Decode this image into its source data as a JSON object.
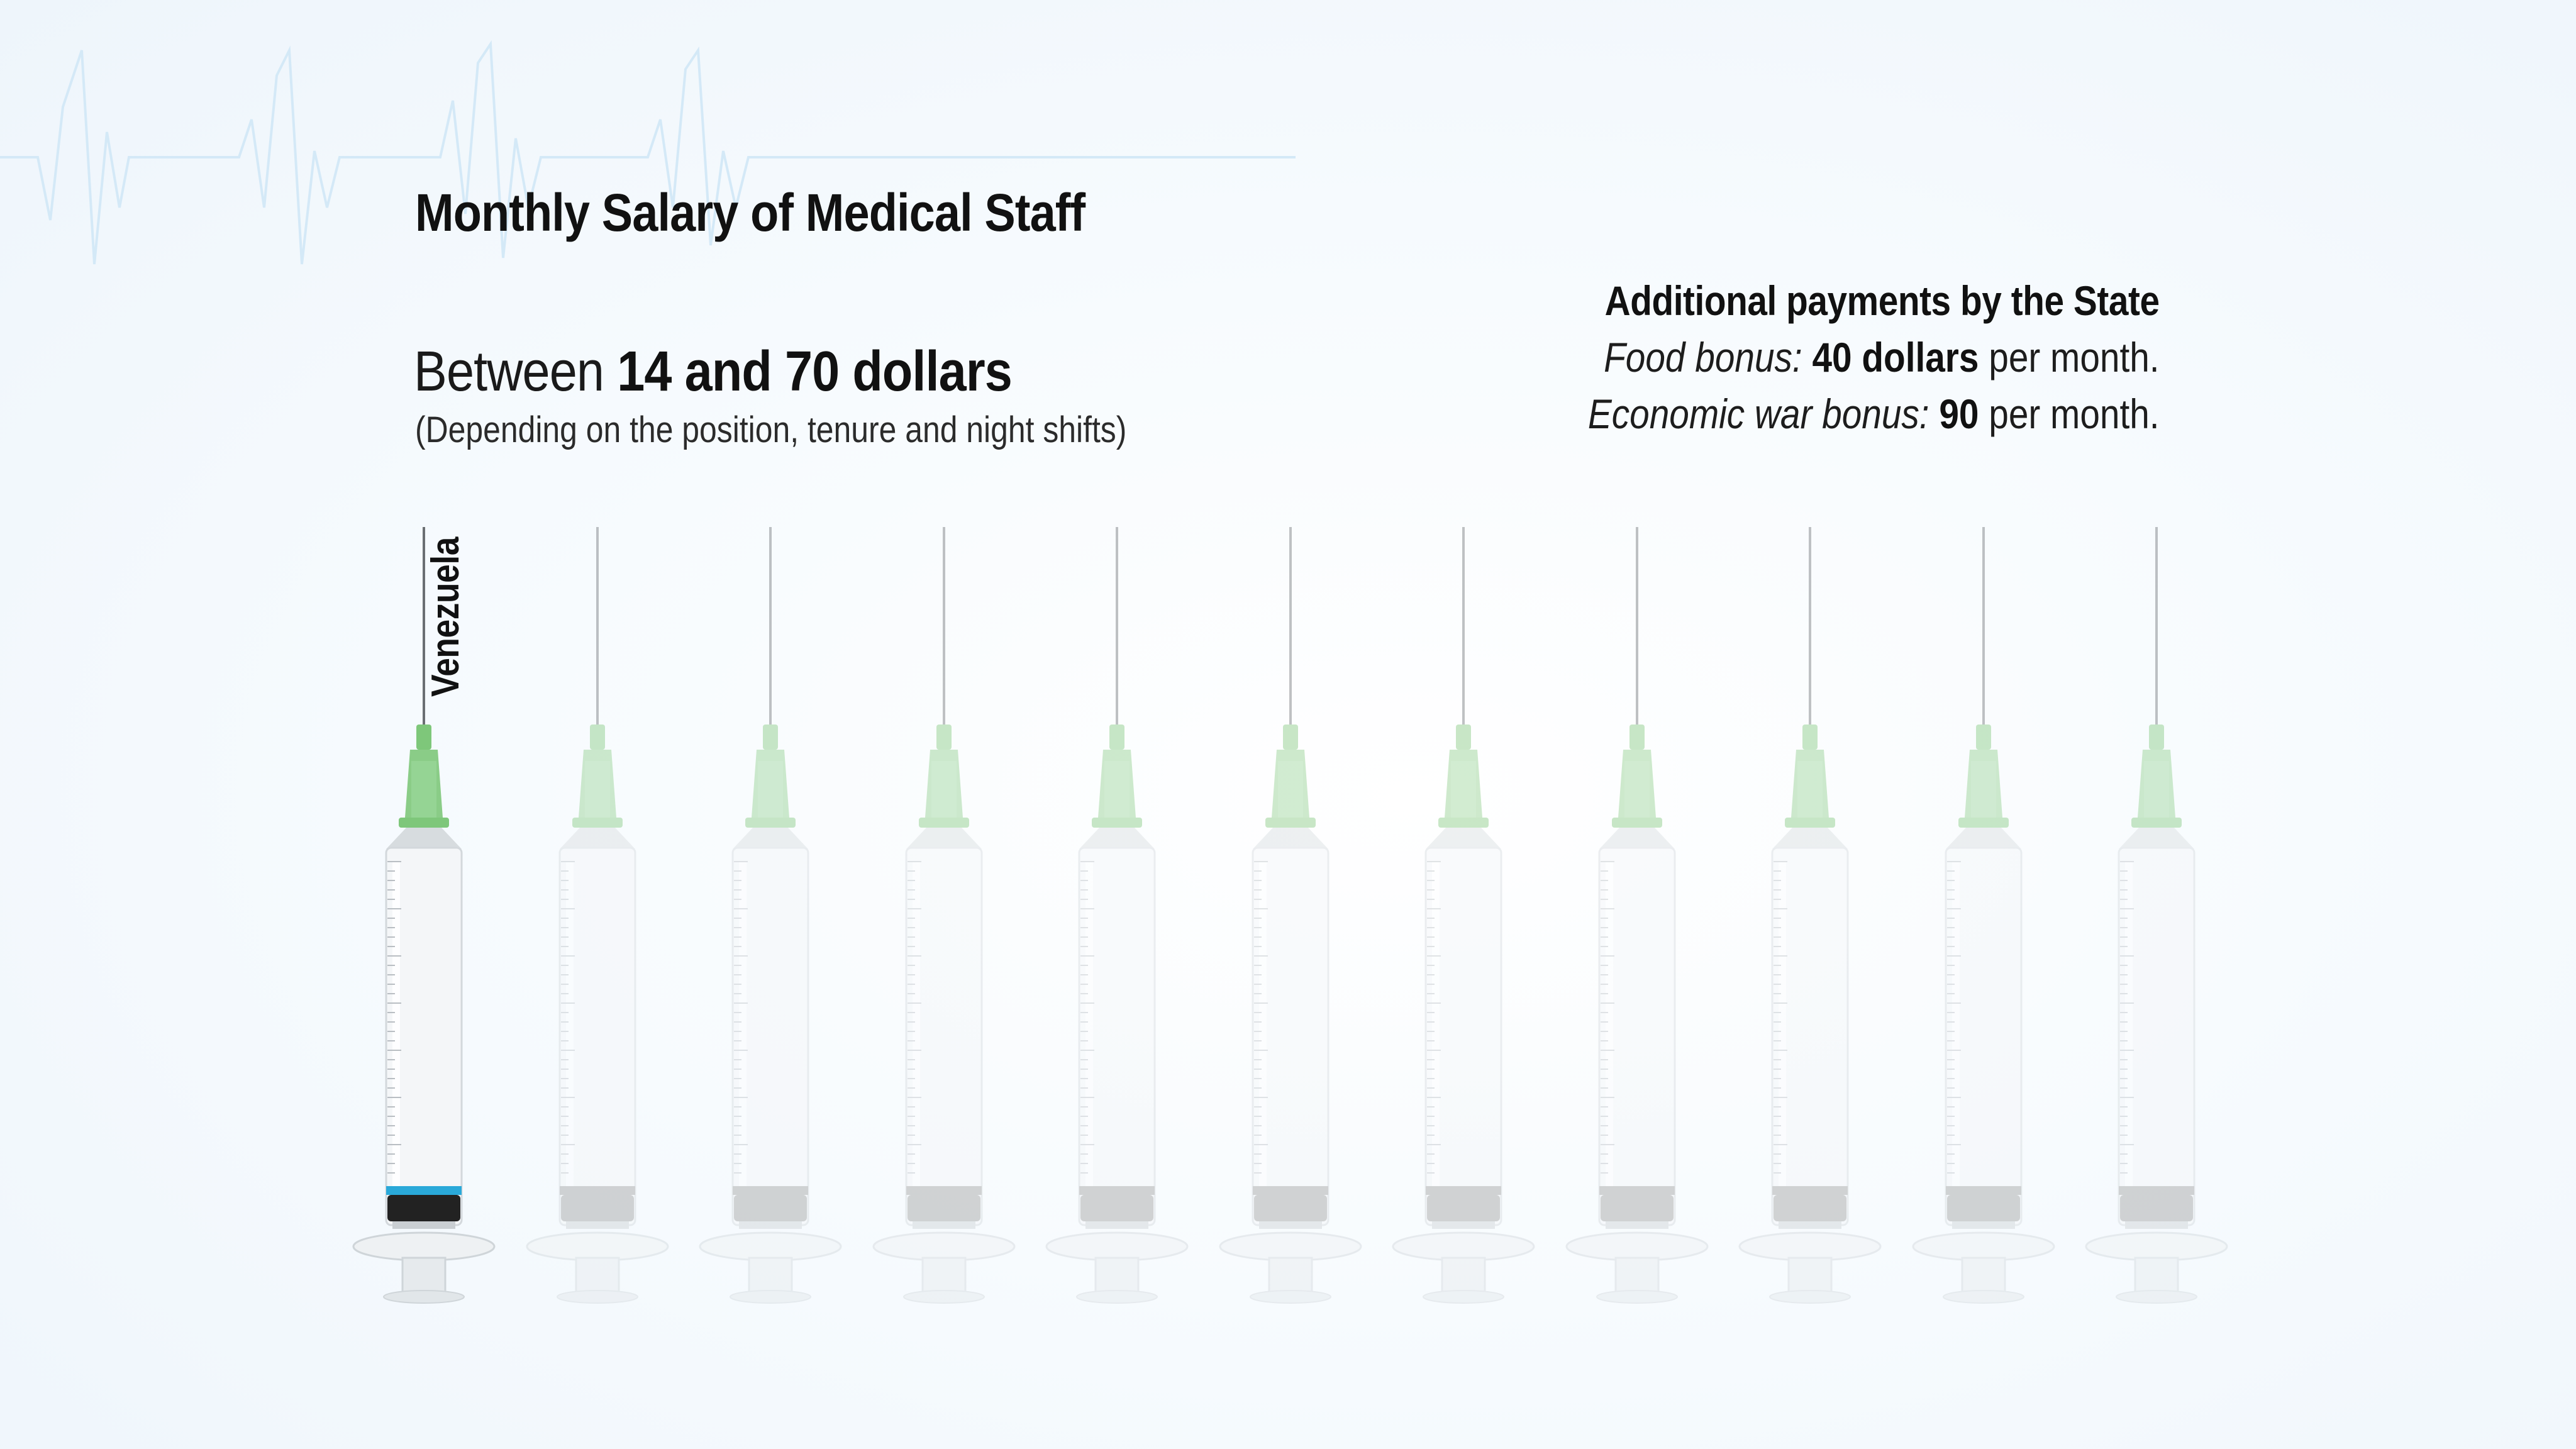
{
  "title": "Monthly Salary of Medical Staff",
  "salary": {
    "prefix": "Between",
    "range": "14 and 70 dollars",
    "note": "(Depending on the position, tenure and night shifts)"
  },
  "additional_payments": {
    "heading": "Additional payments by the State",
    "items": [
      {
        "label": "Food bonus:",
        "amount": "40 dollars",
        "suffix": "per month."
      },
      {
        "label": "Economic war bonus:",
        "amount": "90",
        "suffix": "per month."
      }
    ]
  },
  "syringes": {
    "count": 11,
    "highlighted_label": "Venezuela",
    "fill_fraction_highlighted": 0.0
  },
  "colors": {
    "hub_green": "#7ec77a",
    "stopper_blue": "#2aa9d9",
    "stopper_black": "#222222",
    "faded_stopper": "#9a9a9a",
    "heartbeat_line": "#cfe7f7"
  }
}
